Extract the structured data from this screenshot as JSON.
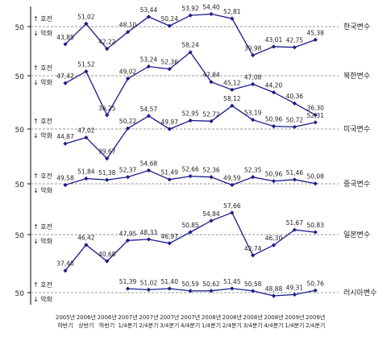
{
  "chart_data": {
    "type": "line",
    "baseline_label": "50",
    "up_label": "↑ 호전",
    "down_label": "↓ 악화",
    "categories": [
      [
        "2005년",
        "하반기"
      ],
      [
        "2006년",
        "상반기"
      ],
      [
        "2006년",
        "하반기"
      ],
      [
        "2007년",
        "1/4분기"
      ],
      [
        "2007년",
        "2/4분기"
      ],
      [
        "2007년",
        "3/4분기"
      ],
      [
        "2007년",
        "4/4분기"
      ],
      [
        "2008년",
        "1/4분기"
      ],
      [
        "2008년",
        "2/4분기"
      ],
      [
        "2008년",
        "3/4분기"
      ],
      [
        "2008년",
        "4/4분기"
      ],
      [
        "2009년",
        "1/4분기"
      ],
      [
        "2009년",
        "2/4분기"
      ]
    ],
    "series": [
      {
        "name": "한국변수",
        "values": [
          43.85,
          51.02,
          42.22,
          48.1,
          53.44,
          50.24,
          53.92,
          54.4,
          52.81,
          39.98,
          43.01,
          42.75,
          45.38
        ]
      },
      {
        "name": "북한변수",
        "values": [
          47.42,
          51.52,
          36.25,
          49.02,
          53.24,
          52.36,
          58.24,
          47.84,
          45.12,
          47.08,
          44.2,
          40.36,
          36.3
        ]
      },
      {
        "name": "미국변수",
        "values": [
          44.87,
          47.02,
          39.67,
          50.22,
          54.57,
          49.97,
          52.95,
          52.72,
          58.12,
          53.19,
          50.96,
          50.72,
          52.31
        ]
      },
      {
        "name": "중국변수",
        "values": [
          49.58,
          51.84,
          51.38,
          52.37,
          54.68,
          51.49,
          52.66,
          52.36,
          49.59,
          52.35,
          50.96,
          51.46,
          50.08
        ]
      },
      {
        "name": "일본변수",
        "values": [
          37.4,
          46.42,
          40.68,
          47.95,
          48.33,
          46.97,
          50.85,
          54.84,
          57.66,
          42.74,
          46.3,
          51.67,
          50.83
        ]
      },
      {
        "name": "러시아변수",
        "values": [
          null,
          null,
          null,
          51.39,
          51.02,
          51.4,
          50.59,
          50.62,
          51.45,
          50.58,
          48.88,
          49.31,
          50.76
        ]
      }
    ],
    "value_labels": [
      [
        "43,85",
        "51,02",
        "42,22",
        "48,10",
        "53,44",
        "50,24",
        "53,92",
        "54,40",
        "52,81",
        "39,98",
        "43,01",
        "42,75",
        "45,38"
      ],
      [
        "47,42",
        "51,52",
        "36,25",
        "49,02",
        "53,24",
        "52,36",
        "58,24",
        "47,84",
        "45,12",
        "47,08",
        "44,20",
        "40,36",
        "36,30"
      ],
      [
        "44,87",
        "47,02",
        "39,67",
        "50,22",
        "54,57",
        "49,97",
        "52,95",
        "52,72",
        "58,12",
        "53,19",
        "50,96",
        "50,72",
        "52,31"
      ],
      [
        "49,58",
        "51,84",
        "51,38",
        "52,37",
        "54,68",
        "51,49",
        "52,66",
        "52,36",
        "49,59",
        "52,35",
        "50,96",
        "51,46",
        "50,08"
      ],
      [
        "37,40",
        "46,42",
        "40,68",
        "47,95",
        "48,33",
        "46,97",
        "50,85",
        "54,84",
        "57,66",
        "42,74",
        "46,30",
        "51,67",
        "50,83"
      ],
      [
        "",
        "",
        "",
        "51,39",
        "51,02",
        "51,40",
        "50,59",
        "50,62",
        "51,45",
        "50,58",
        "48,88",
        "49,31",
        "50,76"
      ]
    ],
    "colors": {
      "line": "#1a1a8c",
      "axis": "#000000",
      "baseline": "#999999",
      "text": "#222222"
    }
  }
}
